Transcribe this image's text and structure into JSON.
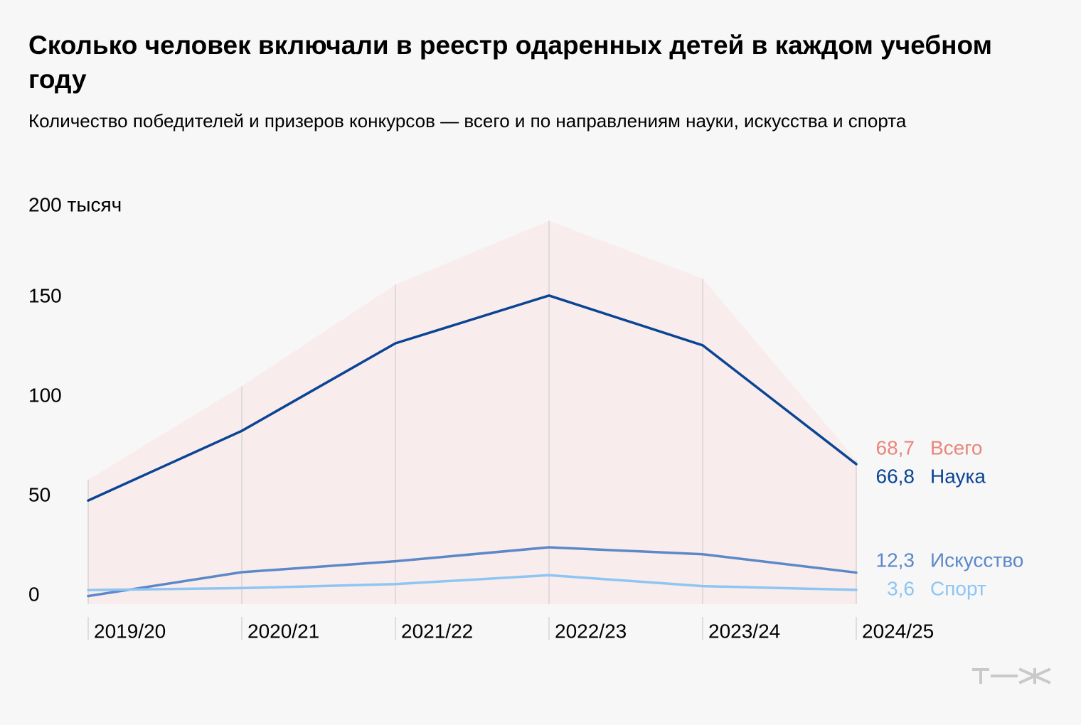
{
  "title": "Сколько человек включали в реестр одаренных детей в каждом учебном году",
  "subtitle": "Количество победителей и призеров конкурсов — всего и по направлениям науки, искусства и спорта",
  "logo_text": "т—ж",
  "chart_data": {
    "type": "line",
    "categories": [
      "2019/20",
      "2020/21",
      "2021/22",
      "2022/23",
      "2023/24",
      "2024/25"
    ],
    "y_ticks": [
      {
        "value": 200,
        "label": "200 тысяч"
      },
      {
        "value": 150,
        "label": "150"
      },
      {
        "value": 100,
        "label": "100"
      },
      {
        "value": 50,
        "label": "50"
      },
      {
        "value": 0,
        "label": "0"
      }
    ],
    "ylim": [
      0,
      200
    ],
    "series": [
      {
        "name": "Всего",
        "kind": "area",
        "color": "#e8867a",
        "fill": "#f9ecec",
        "values": [
          59,
          106,
          157,
          189,
          160,
          68.7
        ],
        "end_label": "68,7"
      },
      {
        "name": "Наука",
        "kind": "line",
        "color": "#0a4494",
        "values": [
          48.5,
          83.5,
          127.5,
          151.5,
          126.5,
          66.8
        ],
        "end_label": "66,8"
      },
      {
        "name": "Искусство",
        "kind": "line",
        "color": "#5b88c9",
        "values": [
          0.5,
          12.5,
          18,
          25,
          21.5,
          12.3
        ],
        "end_label": "12,3"
      },
      {
        "name": "Спорт",
        "kind": "line",
        "color": "#8ec5f3",
        "values": [
          3.5,
          4.5,
          6.5,
          11,
          5.5,
          3.6
        ],
        "end_label": "3,6"
      }
    ]
  }
}
